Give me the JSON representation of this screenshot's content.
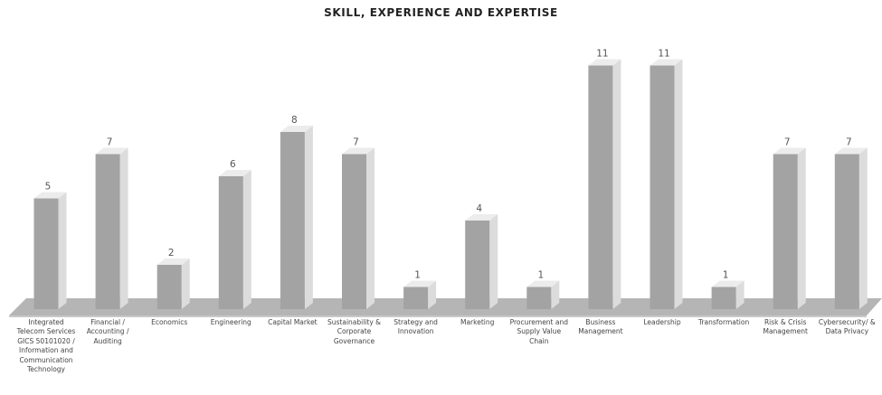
{
  "chart_data": {
    "type": "bar",
    "title": "SKILL, EXPERIENCE AND EXPERTISE",
    "categories": [
      "Integrated Telecom Services GICS 50101020 / Information and Communication Technology",
      "Financial / Accounting / Auditing",
      "Economics",
      "Engineering",
      "Capital Market",
      "Sustainability & Corporate Governance",
      "Strategy and Innovation",
      "Marketing",
      "Procurement and Supply Value Chain",
      "Business Management",
      "Leadership",
      "Transformation",
      "Risk & Crisis Management",
      "Cybersecurity/ & Data Privacy"
    ],
    "values": [
      5,
      7,
      2,
      6,
      8,
      7,
      1,
      4,
      1,
      11,
      11,
      1,
      7,
      7
    ],
    "xlabel": "",
    "ylabel": "",
    "ylim": [
      0,
      11
    ],
    "grid": false,
    "legend": "none",
    "colors": {
      "bar_front": "#a3a3a3",
      "bar_side": "#dcdcdc",
      "bar_top": "#ececec",
      "floor": "#b5b5b5",
      "text": "#444444"
    }
  }
}
